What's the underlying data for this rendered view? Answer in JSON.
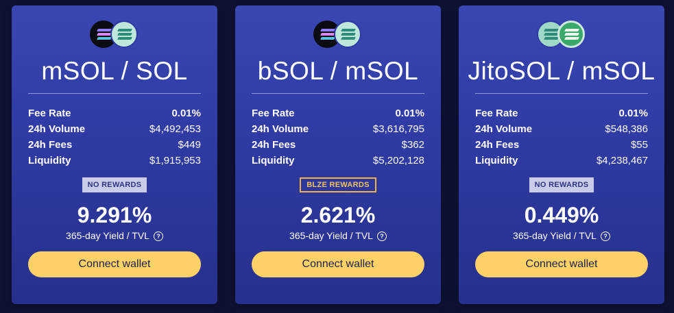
{
  "pools": [
    {
      "pair": "mSOL / SOL",
      "tokens": [
        "msol-icon",
        "sol-icon"
      ],
      "stats": [
        {
          "label": "Fee Rate",
          "value": "0.01%"
        },
        {
          "label": "24h Volume",
          "value": "$4,492,453"
        },
        {
          "label": "24h Fees",
          "value": "$449"
        },
        {
          "label": "Liquidity",
          "value": "$1,915,953"
        }
      ],
      "rewards": "NO REWARDS",
      "yield": "9.291%",
      "yield_label": "365-day Yield / TVL",
      "connect_label": "Connect wallet"
    },
    {
      "pair": "bSOL / mSOL",
      "tokens": [
        "bsol-icon",
        "msol-icon"
      ],
      "stats": [
        {
          "label": "Fee Rate",
          "value": "0.01%"
        },
        {
          "label": "24h Volume",
          "value": "$3,616,795"
        },
        {
          "label": "24h Fees",
          "value": "$362"
        },
        {
          "label": "Liquidity",
          "value": "$5,202,128"
        }
      ],
      "rewards": "BLZE REWARDS",
      "yield": "2.621%",
      "yield_label": "365-day Yield / TVL",
      "connect_label": "Connect wallet"
    },
    {
      "pair": "JitoSOL / mSOL",
      "tokens": [
        "jitosol-icon",
        "msol-icon"
      ],
      "stats": [
        {
          "label": "Fee Rate",
          "value": "0.01%"
        },
        {
          "label": "24h Volume",
          "value": "$548,386"
        },
        {
          "label": "24h Fees",
          "value": "$55"
        },
        {
          "label": "Liquidity",
          "value": "$4,238,467"
        }
      ],
      "rewards": "NO REWARDS",
      "yield": "0.449%",
      "yield_label": "365-day Yield / TVL",
      "connect_label": "Connect wallet"
    }
  ],
  "help_glyph": "?",
  "colors": {
    "card_top": "#3a47b3",
    "card_bottom": "#27308c",
    "connect_button": "#ffd166",
    "blze_badge": "#f2b447",
    "no_rewards_badge": "#c8cce9"
  }
}
